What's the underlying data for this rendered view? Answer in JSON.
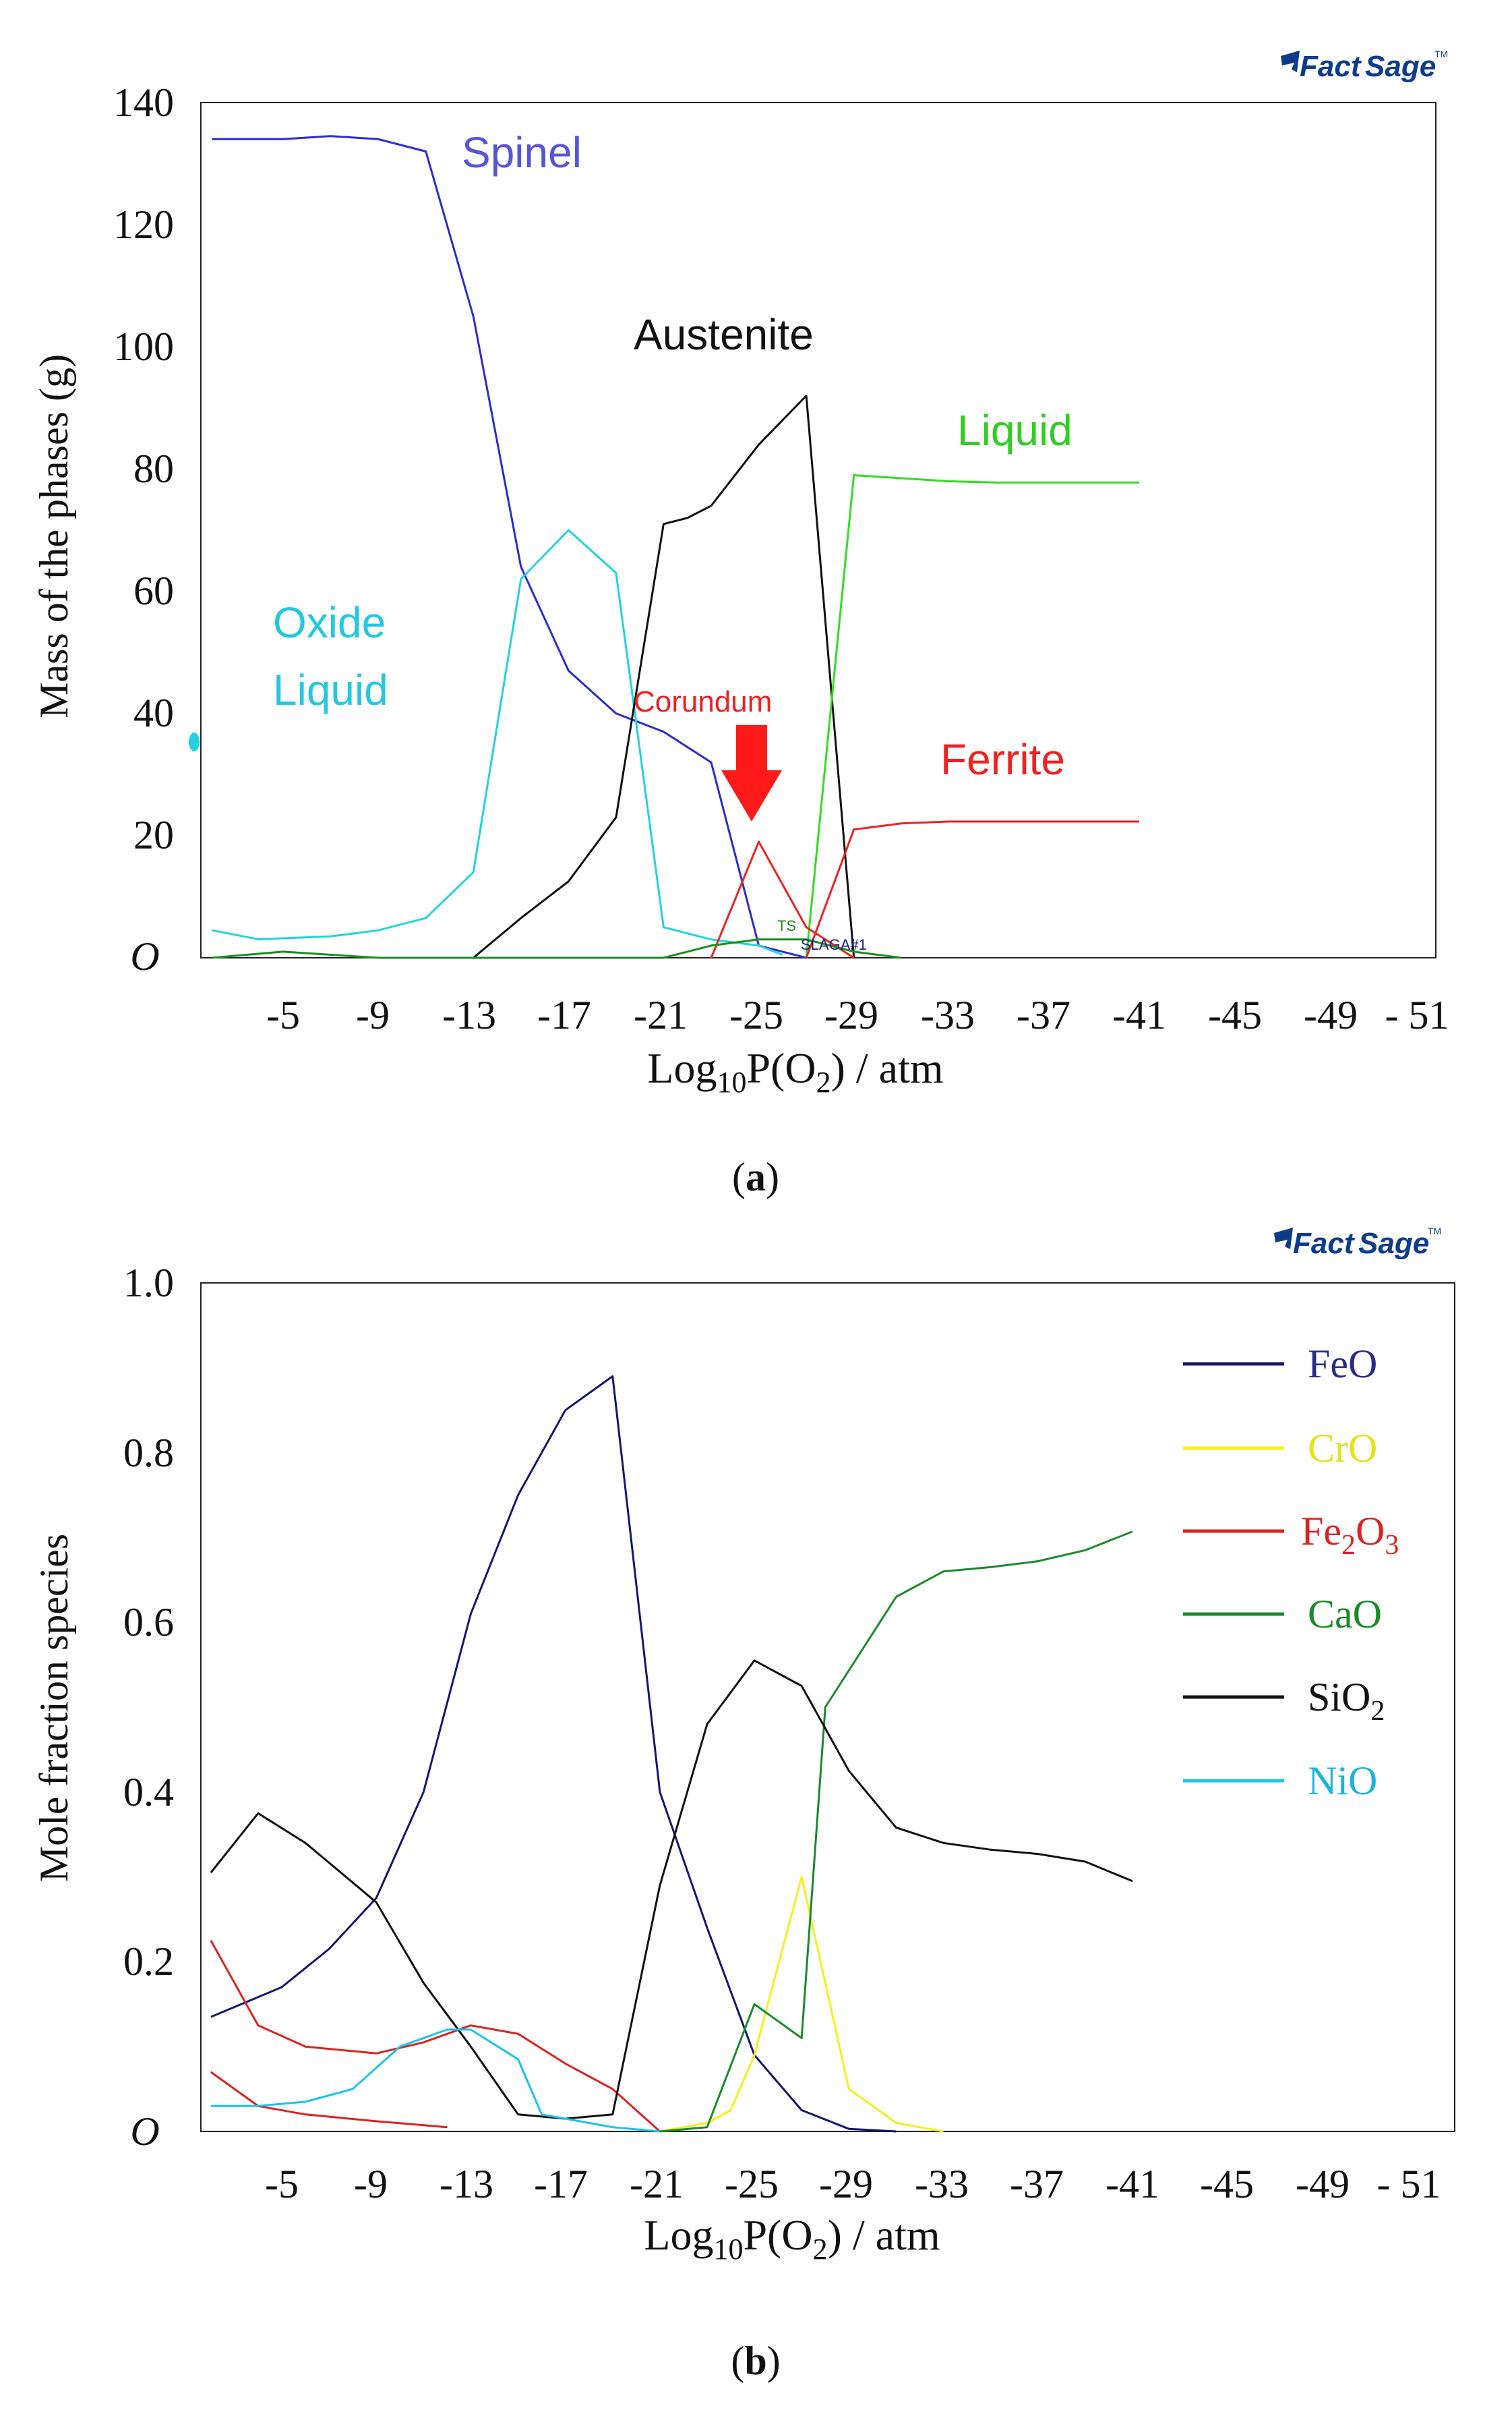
{
  "chart_data": [
    {
      "id": "a",
      "type": "line",
      "caption": "a",
      "ylabel": "Mass of the phases (g)",
      "xlabel": {
        "base": "Log",
        "sub": "10",
        "mid": "P(O",
        "sub2": "2",
        "end": ") / atm"
      },
      "ylim": [
        0,
        140
      ],
      "yticks": [
        "140",
        "120",
        "100",
        "80",
        "60",
        "40",
        "20",
        "O"
      ],
      "ytick_values": [
        140,
        120,
        100,
        80,
        60,
        40,
        20,
        0
      ],
      "xticks": [
        "-5",
        "-9",
        "-13",
        "-17",
        "-21",
        "-25",
        "-29",
        "-33",
        "-37",
        "-41",
        "-45",
        "-49",
        "- 51"
      ],
      "xtick_values": [
        -5,
        -9,
        -13,
        -17,
        -21,
        -25,
        -29,
        -33,
        -37,
        -41,
        -45,
        -49,
        -51
      ],
      "grid": false,
      "series": [
        {
          "name": "Spinel",
          "color": "#2b2bd4",
          "points": [
            [
              -2,
              134
            ],
            [
              -5,
              134
            ],
            [
              -7,
              134.5
            ],
            [
              -9,
              134
            ],
            [
              -11,
              132
            ],
            [
              -13,
              105
            ],
            [
              -15,
              64
            ],
            [
              -17,
              47
            ],
            [
              -19,
              40
            ],
            [
              -21,
              37
            ],
            [
              -23,
              32
            ],
            [
              -25,
              2
            ],
            [
              -27,
              0
            ]
          ]
        },
        {
          "name": "Oxide Liquid",
          "color": "#22d3df",
          "points": [
            [
              -2,
              4.5
            ],
            [
              -4,
              3
            ],
            [
              -5,
              3.2
            ],
            [
              -7,
              3.5
            ],
            [
              -9,
              4.5
            ],
            [
              -11,
              6.5
            ],
            [
              -13,
              14
            ],
            [
              -15,
              62
            ],
            [
              -17,
              70
            ],
            [
              -19,
              63
            ],
            [
              -21,
              5
            ],
            [
              -23,
              3
            ],
            [
              -25,
              2
            ],
            [
              -26,
              0.5
            ]
          ]
        },
        {
          "name": "Austenite",
          "color": "#111111",
          "points": [
            [
              -13,
              0
            ],
            [
              -15,
              6.5
            ],
            [
              -17,
              12.5
            ],
            [
              -19,
              23
            ],
            [
              -21,
              71
            ],
            [
              -22,
              72
            ],
            [
              -23,
              74
            ],
            [
              -25,
              84
            ],
            [
              -27,
              92
            ],
            [
              -29,
              0
            ]
          ]
        },
        {
          "name": "Liquid",
          "color": "#33dd22",
          "points": [
            [
              -27,
              0
            ],
            [
              -29,
              79
            ],
            [
              -31,
              78.5
            ],
            [
              -33,
              78
            ],
            [
              -35,
              77.8
            ],
            [
              -37,
              77.8
            ],
            [
              -39,
              77.8
            ],
            [
              -41,
              77.8
            ]
          ]
        },
        {
          "name": "Ferrite",
          "color": "#ee2222",
          "points": [
            [
              -27,
              0
            ],
            [
              -29,
              21
            ],
            [
              -31,
              22
            ],
            [
              -33,
              22.3
            ],
            [
              -35,
              22.3
            ],
            [
              -37,
              22.3
            ],
            [
              -39,
              22.3
            ],
            [
              -41,
              22.3
            ]
          ]
        },
        {
          "name": "Corundum",
          "color": "#ee2222",
          "points": [
            [
              -23,
              0
            ],
            [
              -25,
              19
            ],
            [
              -27,
              5
            ],
            [
              -29,
              0
            ]
          ]
        },
        {
          "name": "TS",
          "color": "#1a8f1a",
          "points": [
            [
              -2,
              0
            ],
            [
              -5,
              1
            ],
            [
              -7,
              0.5
            ],
            [
              -9,
              0
            ],
            [
              -21,
              0
            ],
            [
              -23,
              2
            ],
            [
              -25,
              3
            ],
            [
              -27,
              3
            ],
            [
              -29,
              1
            ],
            [
              -31,
              0
            ]
          ]
        }
      ],
      "annotations": [
        {
          "text": "Spinel",
          "color": "#5555d8"
        },
        {
          "text": "Austenite",
          "color": "#111111"
        },
        {
          "text": "Liquid",
          "color": "#33cc22"
        },
        {
          "text": "Oxide",
          "color": "#22c8e0"
        },
        {
          "text": "Liquid",
          "color": "#22c8e0"
        },
        {
          "text": "Corundum",
          "color": "#ee2222"
        },
        {
          "text": "Ferrite",
          "color": "#ee2222"
        },
        {
          "text": "TS",
          "color": "#1a8f1a"
        },
        {
          "text": "SLAGA#1",
          "color": "#1a1a8f"
        }
      ]
    },
    {
      "id": "b",
      "type": "line",
      "caption": "b",
      "ylabel": "Mole fraction species",
      "xlabel": {
        "base": "Log",
        "sub": "10",
        "mid": "P(O",
        "sub2": "2",
        "end": ") / atm"
      },
      "ylim": [
        0,
        1.0
      ],
      "yticks": [
        "1.0",
        "0.8",
        "0.6",
        "0.4",
        "0.2",
        "O"
      ],
      "ytick_values": [
        1.0,
        0.8,
        0.6,
        0.4,
        0.2,
        0
      ],
      "xticks": [
        "-5",
        "-9",
        "-13",
        "-17",
        "-21",
        "-25",
        "-29",
        "-33",
        "-37",
        "-41",
        "-45",
        "-49",
        "- 51"
      ],
      "xtick_values": [
        -5,
        -9,
        -13,
        -17,
        -21,
        -25,
        -29,
        -33,
        -37,
        -41,
        -45,
        -49,
        -51
      ],
      "grid": false,
      "series": [
        {
          "name": "FeO",
          "color": "#16166e",
          "points": [
            [
              -2,
              0.135
            ],
            [
              -5,
              0.17
            ],
            [
              -7,
              0.215
            ],
            [
              -9,
              0.275
            ],
            [
              -11,
              0.4
            ],
            [
              -13,
              0.61
            ],
            [
              -15,
              0.75
            ],
            [
              -17,
              0.85
            ],
            [
              -19,
              0.89
            ],
            [
              -21,
              0.4
            ],
            [
              -23,
              0.24
            ],
            [
              -25,
              0.09
            ],
            [
              -27,
              0.025
            ],
            [
              -29,
              0.003
            ],
            [
              -31,
              0
            ]
          ]
        },
        {
          "name": "CrO",
          "color": "#f2f21a",
          "points": [
            [
              -21,
              0
            ],
            [
              -23,
              0.01
            ],
            [
              -24,
              0.025
            ],
            [
              -25,
              0.09
            ],
            [
              -27,
              0.3
            ],
            [
              -29,
              0.05
            ],
            [
              -31,
              0.01
            ],
            [
              -33,
              0
            ]
          ]
        },
        {
          "name": "Fe2O3",
          "color": "#dd2222",
          "points": [
            [
              -2,
              0.225
            ],
            [
              -4,
              0.125
            ],
            [
              -6,
              0.1
            ],
            [
              -9,
              0.092
            ],
            [
              -11,
              0.105
            ],
            [
              -13,
              0.125
            ],
            [
              -15,
              0.115
            ],
            [
              -17,
              0.08
            ],
            [
              -19,
              0.05
            ],
            [
              -21,
              0
            ],
            [
              -2,
              0.07
            ],
            [
              -4,
              0.03
            ],
            [
              -6,
              0.02
            ],
            [
              -9,
              0.012
            ],
            [
              -12,
              0.005
            ]
          ]
        },
        {
          "name": "CaO",
          "color": "#1a8a2a",
          "points": [
            [
              -21,
              0
            ],
            [
              -23,
              0.005
            ],
            [
              -25,
              0.15
            ],
            [
              -27,
              0.11
            ],
            [
              -28,
              0.5
            ],
            [
              -31,
              0.63
            ],
            [
              -33,
              0.66
            ],
            [
              -35,
              0.665
            ],
            [
              -37,
              0.672
            ],
            [
              -39,
              0.685
            ],
            [
              -41,
              0.707
            ]
          ]
        },
        {
          "name": "SiO2",
          "color": "#111111",
          "points": [
            [
              -2,
              0.305
            ],
            [
              -4,
              0.375
            ],
            [
              -6,
              0.34
            ],
            [
              -9,
              0.27
            ],
            [
              -11,
              0.175
            ],
            [
              -13,
              0.1
            ],
            [
              -15,
              0.02
            ],
            [
              -17,
              0.015
            ],
            [
              -19,
              0.02
            ],
            [
              -21,
              0.29
            ],
            [
              -23,
              0.48
            ],
            [
              -25,
              0.555
            ],
            [
              -27,
              0.525
            ],
            [
              -29,
              0.425
            ],
            [
              -31,
              0.358
            ],
            [
              -33,
              0.34
            ],
            [
              -35,
              0.332
            ],
            [
              -37,
              0.327
            ],
            [
              -39,
              0.318
            ],
            [
              -41,
              0.295
            ]
          ]
        },
        {
          "name": "NiO",
          "color": "#19c5e8",
          "points": [
            [
              -2,
              0.03
            ],
            [
              -4,
              0.03
            ],
            [
              -6,
              0.035
            ],
            [
              -8,
              0.05
            ],
            [
              -10,
              0.1
            ],
            [
              -12,
              0.12
            ],
            [
              -13,
              0.12
            ],
            [
              -15,
              0.085
            ],
            [
              -16,
              0.02
            ],
            [
              -18,
              0.01
            ],
            [
              -19,
              0.005
            ],
            [
              -21,
              0
            ]
          ]
        }
      ],
      "legend": [
        {
          "label": "FeO",
          "color": "#16166e",
          "text_color": "#2a2a8a"
        },
        {
          "label": "CrO",
          "color": "#f2f21a",
          "text_color": "#e8e020"
        },
        {
          "label_base": "Fe",
          "sub1": "2",
          "mid": "O",
          "sub2": "3",
          "color": "#dd2222",
          "text_color": "#dd2222"
        },
        {
          "label": "CaO",
          "color": "#1a8a2a",
          "text_color": "#1a8a2a"
        },
        {
          "label_base": "SiO",
          "sub1": "2",
          "color": "#111111",
          "text_color": "#111111"
        },
        {
          "label": "NiO",
          "color": "#19c5e8",
          "text_color": "#19b5e0"
        }
      ]
    }
  ],
  "logo": {
    "text_a": "Fact",
    "text_b": "Sage",
    "tm": "TM"
  },
  "colors": {
    "logo_blue": "#0d3c8a",
    "arrow_red": "#ff1a1a"
  }
}
